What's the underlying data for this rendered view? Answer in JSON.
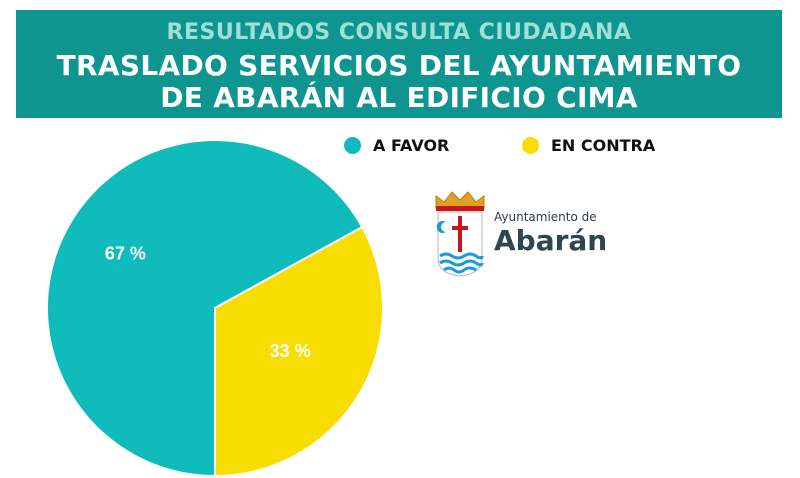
{
  "header": {
    "subtitle": "RESULTADOS CONSULTA CIUDADANA",
    "title_line1": "TRASLADO SERVICIOS DEL AYUNTAMIENTO",
    "title_line2": "DE ABARÁN AL EDIFICIO CIMA"
  },
  "colors": {
    "banner": "#0e9590",
    "favor": "#10bcbb",
    "contra": "#f7dd02"
  },
  "logo": {
    "line1": "Ayuntamiento de",
    "line2": "Abarán",
    "icon": "coat-of-arms-icon"
  },
  "chart_data": {
    "type": "pie",
    "title": "",
    "categories": [
      "A FAVOR",
      "EN CONTRA"
    ],
    "values": [
      67,
      33
    ],
    "value_labels": [
      "67 %",
      "33 %"
    ],
    "legend_position": "top"
  }
}
